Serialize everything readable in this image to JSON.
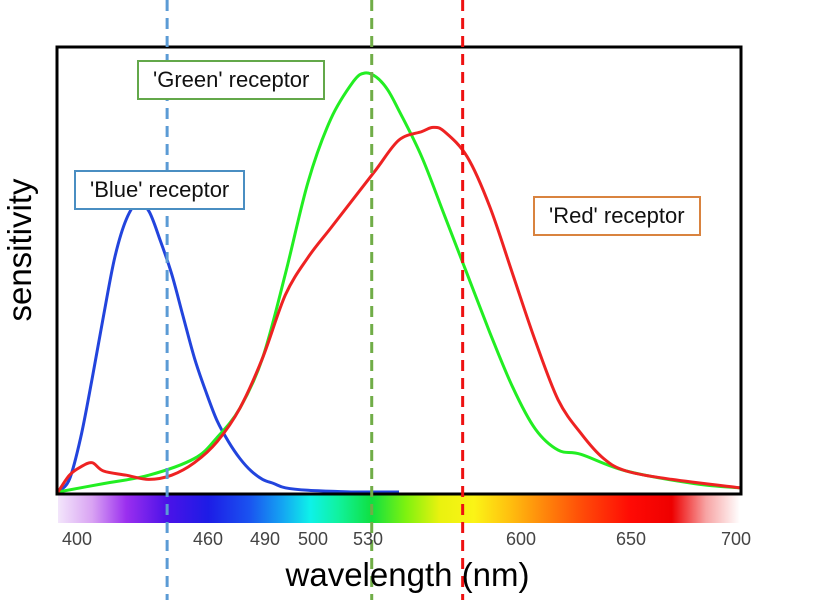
{
  "chart_data": {
    "type": "line",
    "xlabel": "wavelength (nm)",
    "ylabel": "sensitivity",
    "xlim": [
      400,
      700
    ],
    "ylim": [
      0,
      1.05
    ],
    "grid": false,
    "legend": "inline labels",
    "x_ticks": [
      400,
      460,
      490,
      500,
      530,
      600,
      650,
      700
    ],
    "spectrum_bar": true,
    "series": [
      {
        "name": "'Blue' receptor",
        "color": "#2244dd",
        "x": [
          400,
          405,
          410,
          415,
          420,
          425,
          430,
          435,
          440,
          445,
          450,
          455,
          460,
          465,
          470,
          475,
          480,
          485,
          490,
          495,
          500,
          510,
          520,
          530,
          540,
          550
        ],
        "y": [
          0.0,
          0.03,
          0.13,
          0.27,
          0.42,
          0.56,
          0.65,
          0.69,
          0.67,
          0.6,
          0.52,
          0.42,
          0.32,
          0.24,
          0.17,
          0.12,
          0.08,
          0.05,
          0.03,
          0.02,
          0.01,
          0.004,
          0.002,
          0.0,
          0.0,
          0.0
        ]
      },
      {
        "name": "'Green' receptor",
        "color": "#22ee22",
        "x": [
          400,
          420,
          440,
          460,
          470,
          480,
          490,
          500,
          510,
          520,
          530,
          535,
          540,
          545,
          550,
          560,
          570,
          580,
          590,
          600,
          610,
          620,
          630,
          650,
          680,
          700
        ],
        "y": [
          0.0,
          0.02,
          0.04,
          0.08,
          0.13,
          0.2,
          0.32,
          0.52,
          0.74,
          0.89,
          0.98,
          1.0,
          0.99,
          0.96,
          0.91,
          0.8,
          0.66,
          0.52,
          0.38,
          0.25,
          0.15,
          0.1,
          0.09,
          0.05,
          0.02,
          0.01
        ]
      },
      {
        "name": "'Red' receptor",
        "color": "#ee2222",
        "x": [
          400,
          405,
          410,
          415,
          420,
          430,
          440,
          450,
          460,
          470,
          480,
          490,
          500,
          510,
          520,
          530,
          540,
          550,
          560,
          565,
          570,
          580,
          590,
          600,
          610,
          620,
          630,
          640,
          650,
          670,
          700
        ],
        "y": [
          0.0,
          0.04,
          0.06,
          0.07,
          0.05,
          0.04,
          0.03,
          0.04,
          0.07,
          0.12,
          0.2,
          0.32,
          0.47,
          0.56,
          0.63,
          0.7,
          0.77,
          0.84,
          0.86,
          0.87,
          0.86,
          0.8,
          0.68,
          0.52,
          0.36,
          0.22,
          0.14,
          0.08,
          0.05,
          0.03,
          0.01
        ]
      }
    ],
    "markers": [
      {
        "x": 448,
        "color": "#5b9bd5",
        "style": "dashed"
      },
      {
        "x": 538,
        "color": "#70ad47",
        "style": "dashed"
      },
      {
        "x": 578,
        "color": "#ee1111",
        "style": "dashed"
      }
    ]
  }
}
